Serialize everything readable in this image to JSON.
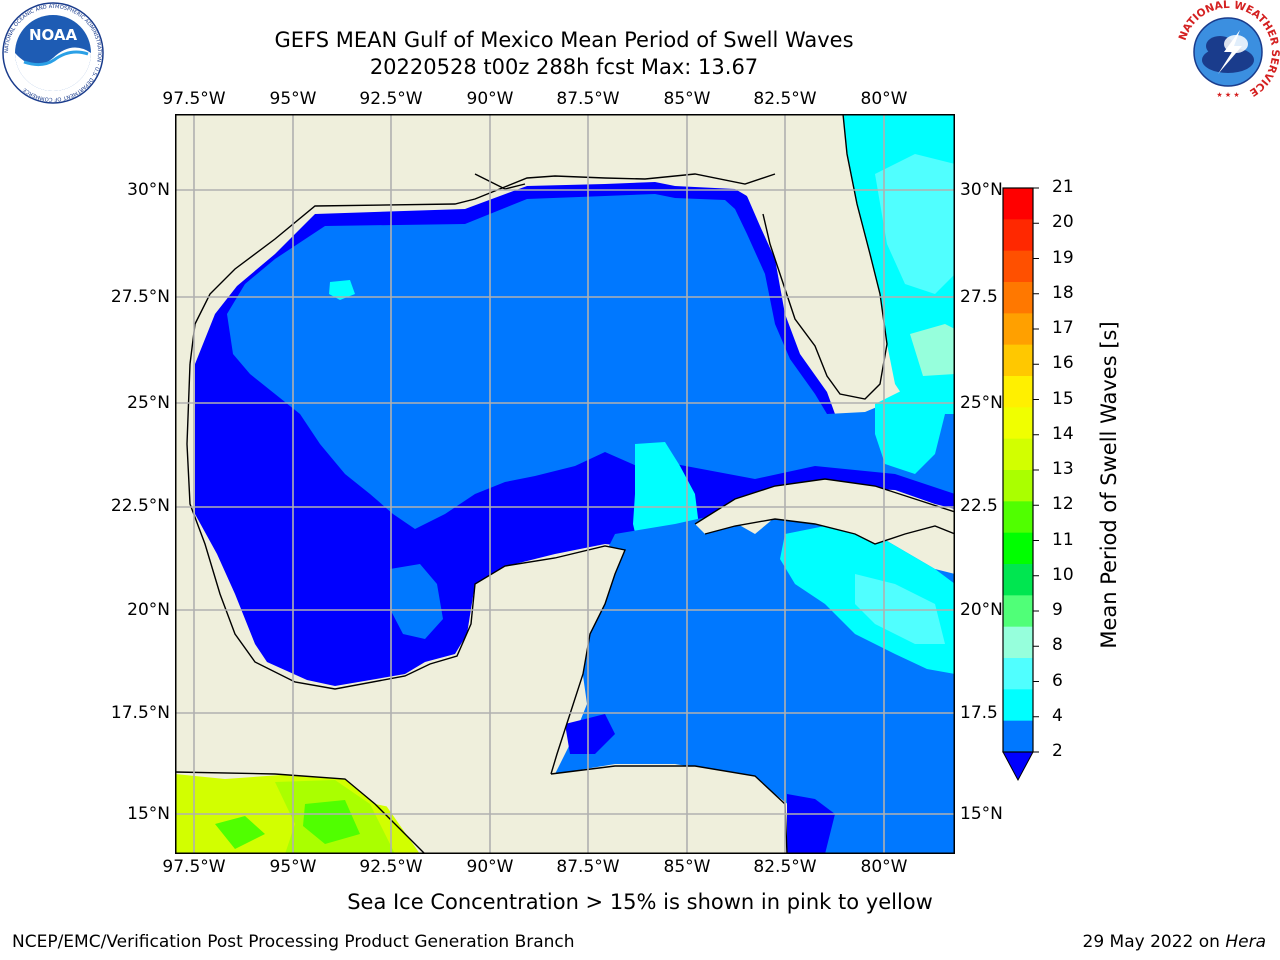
{
  "title": {
    "line1": "GEFS MEAN Gulf of Mexico Mean Period of Swell Waves",
    "line2": "20220528 t00z 288h fcst   Max: 13.67"
  },
  "logos": {
    "left": "NOAA",
    "left_ring": "NATIONAL OCEANIC AND ATMOSPHERIC ADMINISTRATION · U.S. DEPARTMENT OF COMMERCE",
    "right_ring": "NATIONAL WEATHER SERVICE"
  },
  "map": {
    "lon_ticks": [
      "97.5°W",
      "95°W",
      "92.5°W",
      "90°W",
      "87.5°W",
      "85°W",
      "82.5°W",
      "80°W"
    ],
    "lat_ticks_left": [
      "30°N",
      "27.5°N",
      "25°N",
      "22.5°N",
      "20°N",
      "17.5°N",
      "15°N"
    ],
    "lat_ticks_right": [
      "30°N",
      "27.5",
      "25°N",
      "22.5",
      "20°N",
      "17.5",
      "15°N"
    ]
  },
  "colorbar": {
    "label": "Mean Period of Swell Waves [s]",
    "ticks": [
      "21",
      "20",
      "19",
      "18",
      "17",
      "16",
      "15",
      "14",
      "13",
      "12",
      "11",
      "10",
      "9",
      "8",
      "6",
      "4",
      "2"
    ],
    "colors": [
      "#ff0000",
      "#ff2800",
      "#ff5000",
      "#ff7800",
      "#ffa000",
      "#ffc800",
      "#fff000",
      "#f0ff00",
      "#d2ff00",
      "#aaff00",
      "#50ff00",
      "#00ff00",
      "#00e650",
      "#50ff78",
      "#96ffdc",
      "#50ffff",
      "#00ffff",
      "#0078ff"
    ],
    "extend_color": "#0000ff"
  },
  "note": "Sea Ice Concentration > 15% is shown in pink to yellow",
  "footer": {
    "left": "NCEP/EMC/Verification Post Processing Product Generation Branch",
    "right_date": "29 May 2022 on ",
    "right_host": "Hera"
  }
}
